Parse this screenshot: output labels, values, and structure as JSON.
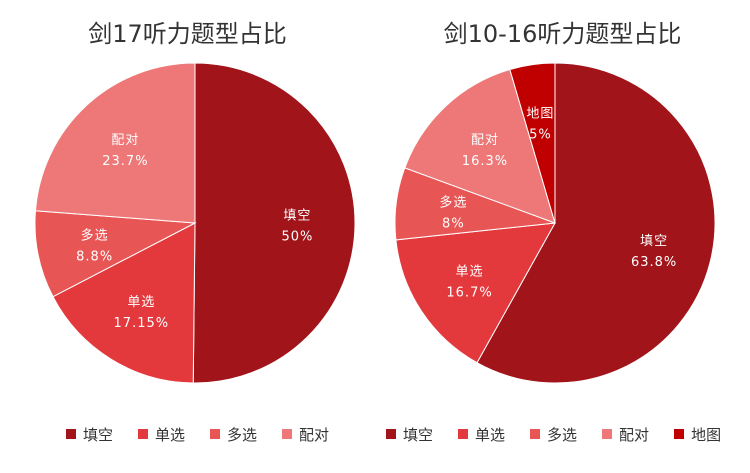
{
  "chart_data": [
    {
      "type": "pie",
      "title": "剑17听力题型占比",
      "legend_position": "bottom",
      "slices": [
        {
          "label": "填空",
          "value": 50,
          "value_label": "50%",
          "color": "#A0141A"
        },
        {
          "label": "单选",
          "value": 17.15,
          "value_label": "17.15%",
          "color": "#E4393C"
        },
        {
          "label": "多选",
          "value": 8.8,
          "value_label": "8.8%",
          "color": "#E85555"
        },
        {
          "label": "配对",
          "value": 23.7,
          "value_label": "23.7%",
          "color": "#EE7878"
        }
      ]
    },
    {
      "type": "pie",
      "title": "剑10-16听力题型占比",
      "legend_position": "bottom",
      "slices": [
        {
          "label": "填空",
          "value": 63.8,
          "value_label": "63.8%",
          "color": "#A0141A"
        },
        {
          "label": "单选",
          "value": 16.7,
          "value_label": "16.7%",
          "color": "#E4393C"
        },
        {
          "label": "多选",
          "value": 8,
          "value_label": "8%",
          "color": "#E85555"
        },
        {
          "label": "配对",
          "value": 16.3,
          "value_label": "16.3%",
          "color": "#EE7878"
        },
        {
          "label": "地图",
          "value": 5,
          "value_label": "5%",
          "color": "#C00000"
        }
      ]
    }
  ]
}
